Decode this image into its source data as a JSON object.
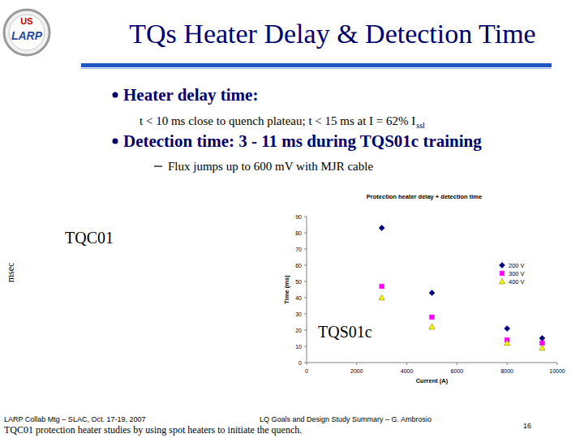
{
  "logo": [
    "US",
    "LARP"
  ],
  "header": {
    "title": "TQs Heater Delay & Detection Time"
  },
  "bullets": [
    {
      "text": "Heater delay time:",
      "sub": [
        {
          "text": "t < 10 ms close to quench plateau; t < 15 ms at I = 62% I",
          "subscript": "ssl"
        }
      ]
    },
    {
      "text": "Detection time: 3 - 11 ms during TQS01c training",
      "sub": [
        {
          "text": "Flux jumps up to 600 mV with MJR cable"
        }
      ]
    }
  ],
  "labels": {
    "tqc01": "TQC01",
    "msec": "msec",
    "tqs01c": "TQS01c"
  },
  "chart_data": {
    "type": "scatter",
    "title": "Protection heater delay + detection time",
    "x_label": "Current (A)",
    "y_label": "Time (ms)",
    "x": [
      3000,
      5000,
      8000,
      9400
    ],
    "series": [
      {
        "name": "200 V",
        "color": "#000080",
        "marker": "diamond",
        "values": [
          83,
          43,
          21,
          15
        ]
      },
      {
        "name": "300 V",
        "color": "#ff00ff",
        "marker": "square",
        "values": [
          47,
          28,
          14,
          12
        ]
      },
      {
        "name": "400 V",
        "color": "#ffff00",
        "marker": "triangle",
        "values": [
          40,
          22,
          12,
          9
        ]
      }
    ],
    "xlim": [
      0,
      10000
    ],
    "ylim": [
      0,
      90
    ],
    "xticks": [
      0,
      2000,
      4000,
      6000,
      8000,
      10000
    ],
    "yticks": [
      0,
      10,
      20,
      30,
      40,
      50,
      60,
      70,
      80,
      90
    ],
    "grid": false,
    "legend": "right"
  },
  "footer": {
    "left": "LARP Collab Mtg – SLAC, Oct. 17-19, 2007",
    "center": "LQ Goals and Design Study Summary – G. Ambrosio",
    "caption": "TQC01 protection heater studies by using spot heaters to initiate the quench.",
    "page": 16
  }
}
